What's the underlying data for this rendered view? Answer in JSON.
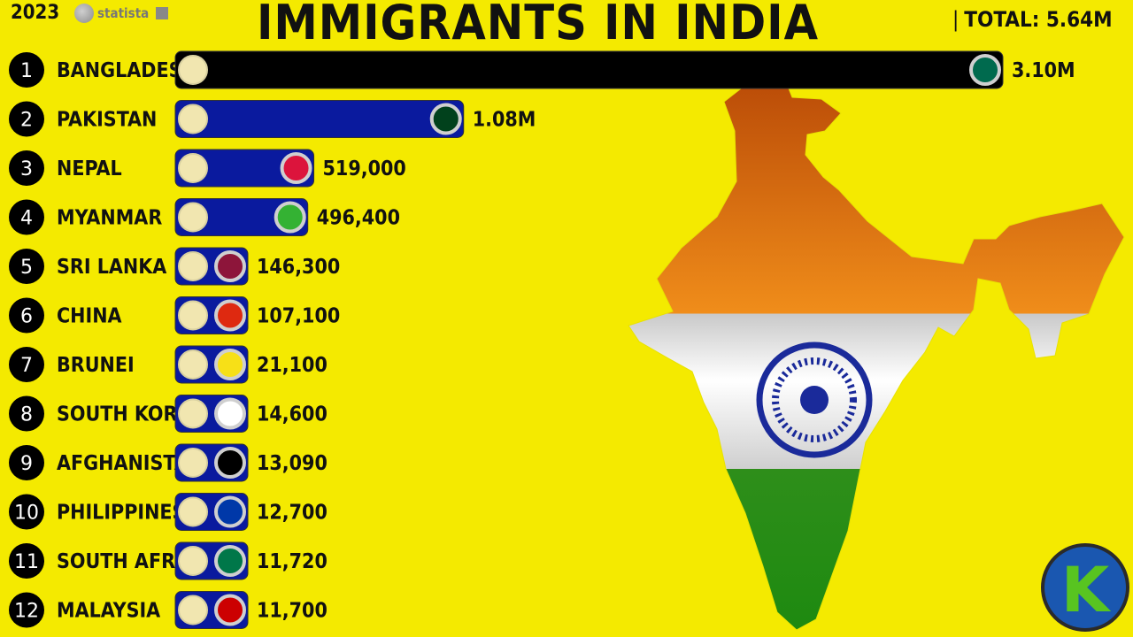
{
  "header": {
    "year": "2023",
    "source": "statista",
    "title": "IMMIGRANTS IN INDIA",
    "total": "TOTAL: 5.64M"
  },
  "logo": {
    "letter": "K"
  },
  "colors": {
    "background": "#f4ea00",
    "bar_top": "#000000",
    "bar_other": "#0a1a9e"
  },
  "chart_data": {
    "type": "bar",
    "orientation": "horizontal",
    "title": "IMMIGRANTS IN INDIA",
    "unit": "people",
    "categories": [
      "BANGLADESH",
      "PAKISTAN",
      "NEPAL",
      "MYANMAR",
      "SRI LANKA",
      "CHINA",
      "BRUNEI",
      "SOUTH KOREA",
      "AFGHANISTAN",
      "PHILIPPINES",
      "SOUTH AFRICA",
      "MALAYSIA"
    ],
    "ranks": [
      "1",
      "2",
      "3",
      "4",
      "5",
      "6",
      "7",
      "8",
      "9",
      "10",
      "11",
      "12"
    ],
    "values": [
      3100000,
      1080000,
      519000,
      496400,
      146300,
      107100,
      21100,
      14600,
      13090,
      12700,
      11720,
      11700
    ],
    "value_labels": [
      "3.10M",
      "1.08M",
      "519,000",
      "496,400",
      "146,300",
      "107,100",
      "21,100",
      "14,600",
      "13,090",
      "12,700",
      "11,720",
      "11,700"
    ],
    "flag_icons": [
      "bangladesh-flag-icon",
      "pakistan-flag-icon",
      "nepal-flag-icon",
      "myanmar-flag-icon",
      "sri-lanka-flag-icon",
      "china-flag-icon",
      "brunei-flag-icon",
      "south-korea-flag-icon",
      "afghanistan-flag-icon",
      "philippines-flag-icon",
      "south-africa-flag-icon",
      "malaysia-flag-icon"
    ],
    "flag_colors": [
      "#006a4e",
      "#01411c",
      "#dc143c",
      "#34b233",
      "#8d153a",
      "#de2910",
      "#f7e017",
      "#ffffff",
      "#000000",
      "#0038a8",
      "#007749",
      "#cc0001"
    ],
    "xlim": [
      0,
      3100000
    ],
    "grid": false,
    "legend": "none"
  }
}
